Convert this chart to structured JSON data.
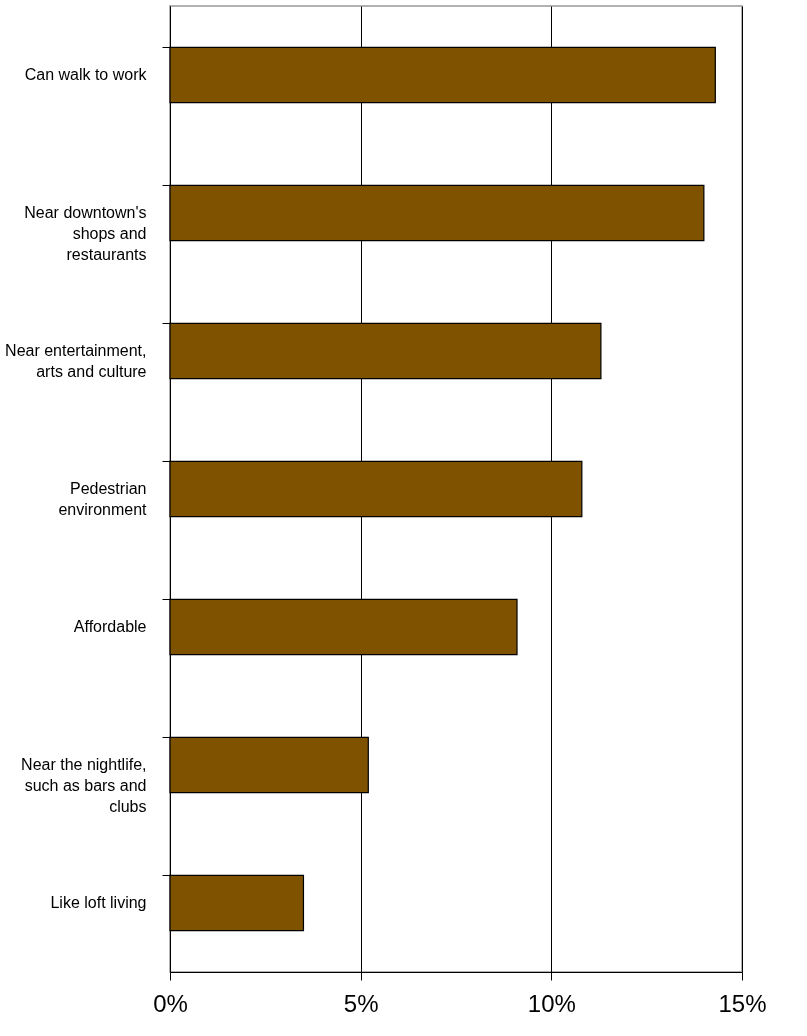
{
  "chart_data": {
    "type": "bar",
    "orientation": "horizontal",
    "categories": [
      "Can walk to work",
      "Near downtown's shops and restaurants",
      "Near entertainment, arts and culture",
      "Pedestrian environment",
      "Affordable",
      "Near the nightlife, such as bars and clubs",
      "Like loft living"
    ],
    "values": [
      14.3,
      14.0,
      11.3,
      10.8,
      9.1,
      5.2,
      3.5
    ],
    "color": "#7f5200",
    "xlim": [
      0,
      15
    ],
    "xticks": [
      {
        "value": 0,
        "label": "0%"
      },
      {
        "value": 5,
        "label": "5%"
      },
      {
        "value": 10,
        "label": "10%"
      },
      {
        "value": 15,
        "label": "15%"
      }
    ],
    "grid": "x"
  }
}
